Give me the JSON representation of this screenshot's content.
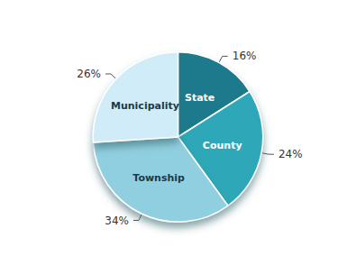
{
  "chart_data": {
    "type": "pie",
    "categories": [
      "State",
      "County",
      "Township",
      "Municipality"
    ],
    "values": [
      16,
      24,
      34,
      26
    ],
    "value_labels": [
      "16%",
      "24%",
      "34%",
      "26%"
    ],
    "colors": [
      "#1f7a8c",
      "#2fa8b8",
      "#90cfe0",
      "#d0ecf8"
    ],
    "data_labels": true
  }
}
